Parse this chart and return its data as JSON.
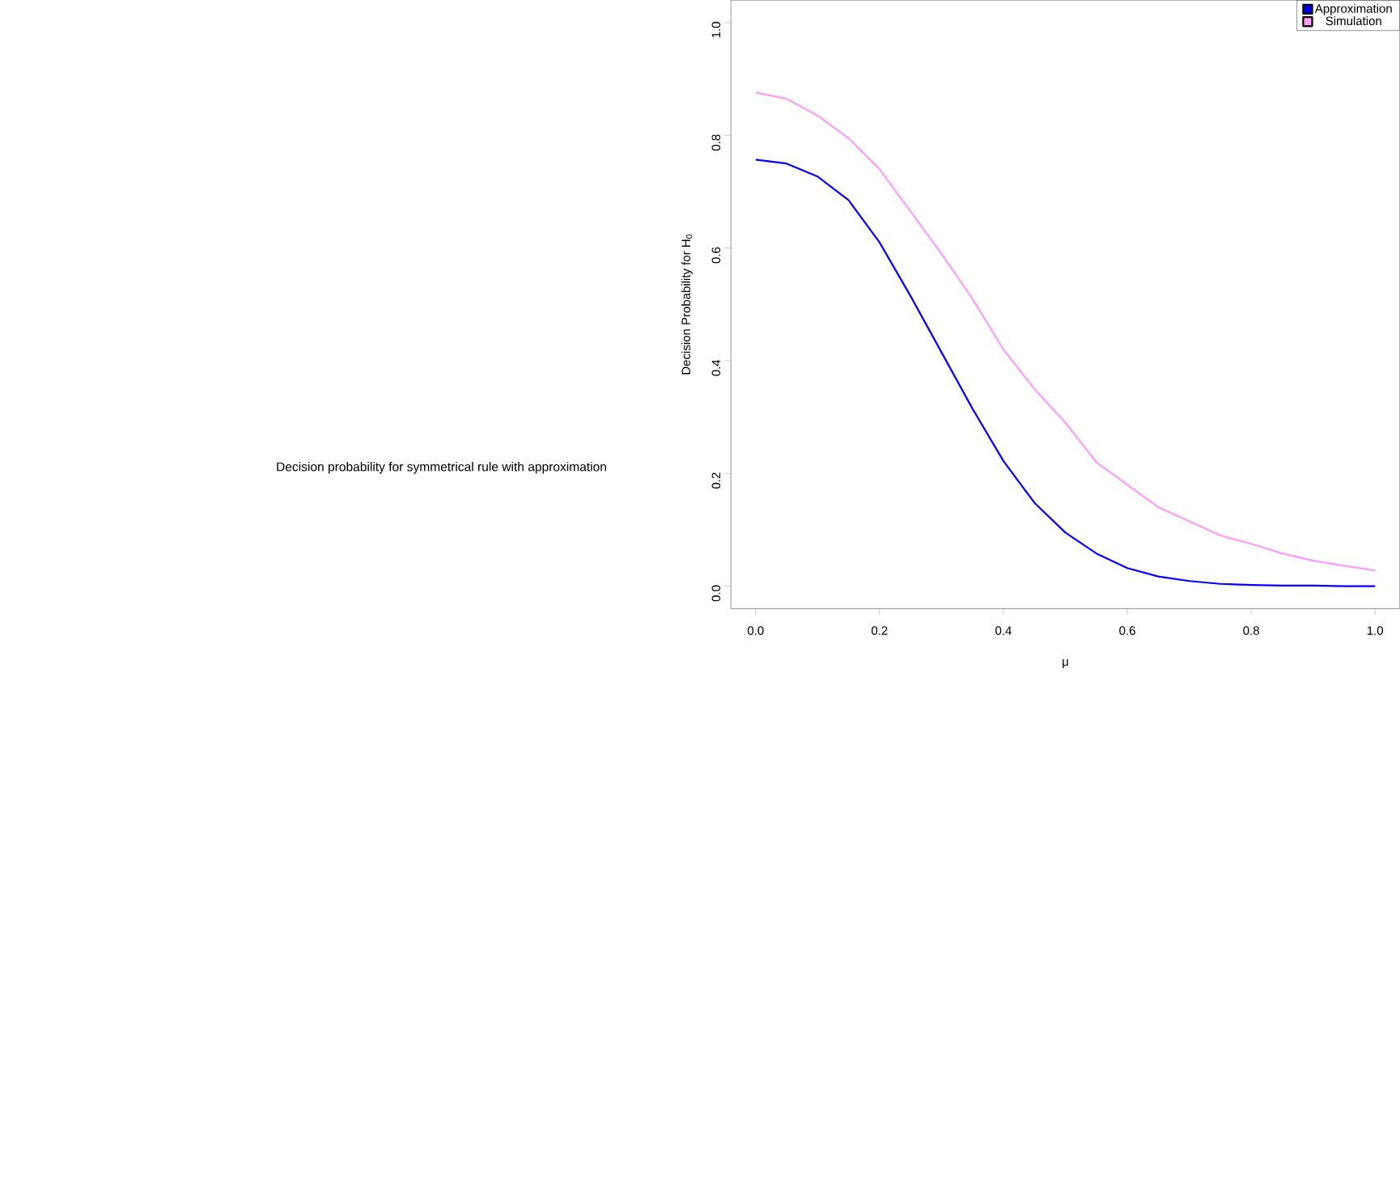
{
  "chart_data": {
    "type": "line",
    "title": "Decision probability for symmetrical rule with approximation",
    "xlabel": "μ",
    "ylabel": "Decision Probability for H$_{0}$",
    "xlim": [
      -0.04,
      1.04
    ],
    "ylim": [
      -0.04,
      1.04
    ],
    "xticks": [
      {
        "value": 0,
        "label": "0.0"
      },
      0.2,
      0.4,
      0.6,
      0.8,
      {
        "value": 1,
        "label": "1.0"
      }
    ],
    "yticks": [
      {
        "value": 0,
        "label": "0.0"
      },
      0.2,
      0.4,
      0.6,
      0.8,
      {
        "value": 1,
        "label": "1.0"
      }
    ],
    "grid": false,
    "legend": "top right",
    "marker": "none",
    "line_style": "solid",
    "x": [
      0,
      0.05,
      0.1,
      0.15,
      0.2,
      0.25,
      0.3,
      0.35,
      0.4,
      0.45,
      0.5,
      0.55,
      0.6,
      0.65,
      0.7,
      0.75,
      0.8,
      0.85,
      0.9,
      0.95,
      1.0
    ],
    "series": [
      {
        "name": "Approximation",
        "color": "#0000ff",
        "values": [
          0.757,
          0.75,
          0.727,
          0.685,
          0.61,
          0.515,
          0.415,
          0.315,
          0.222,
          0.148,
          0.095,
          0.058,
          0.032,
          0.017,
          0.009,
          0.004,
          0.002,
          0.001,
          0.001,
          0.0,
          0.0
        ]
      },
      {
        "name": "Simulation",
        "color": "#ff99ff",
        "values": [
          0.876,
          0.865,
          0.835,
          0.795,
          0.74,
          0.665,
          0.59,
          0.51,
          0.42,
          0.35,
          0.29,
          0.22,
          0.18,
          0.14,
          0.115,
          0.09,
          0.075,
          0.058,
          0.045,
          0.036,
          0.028
        ]
      }
    ]
  }
}
